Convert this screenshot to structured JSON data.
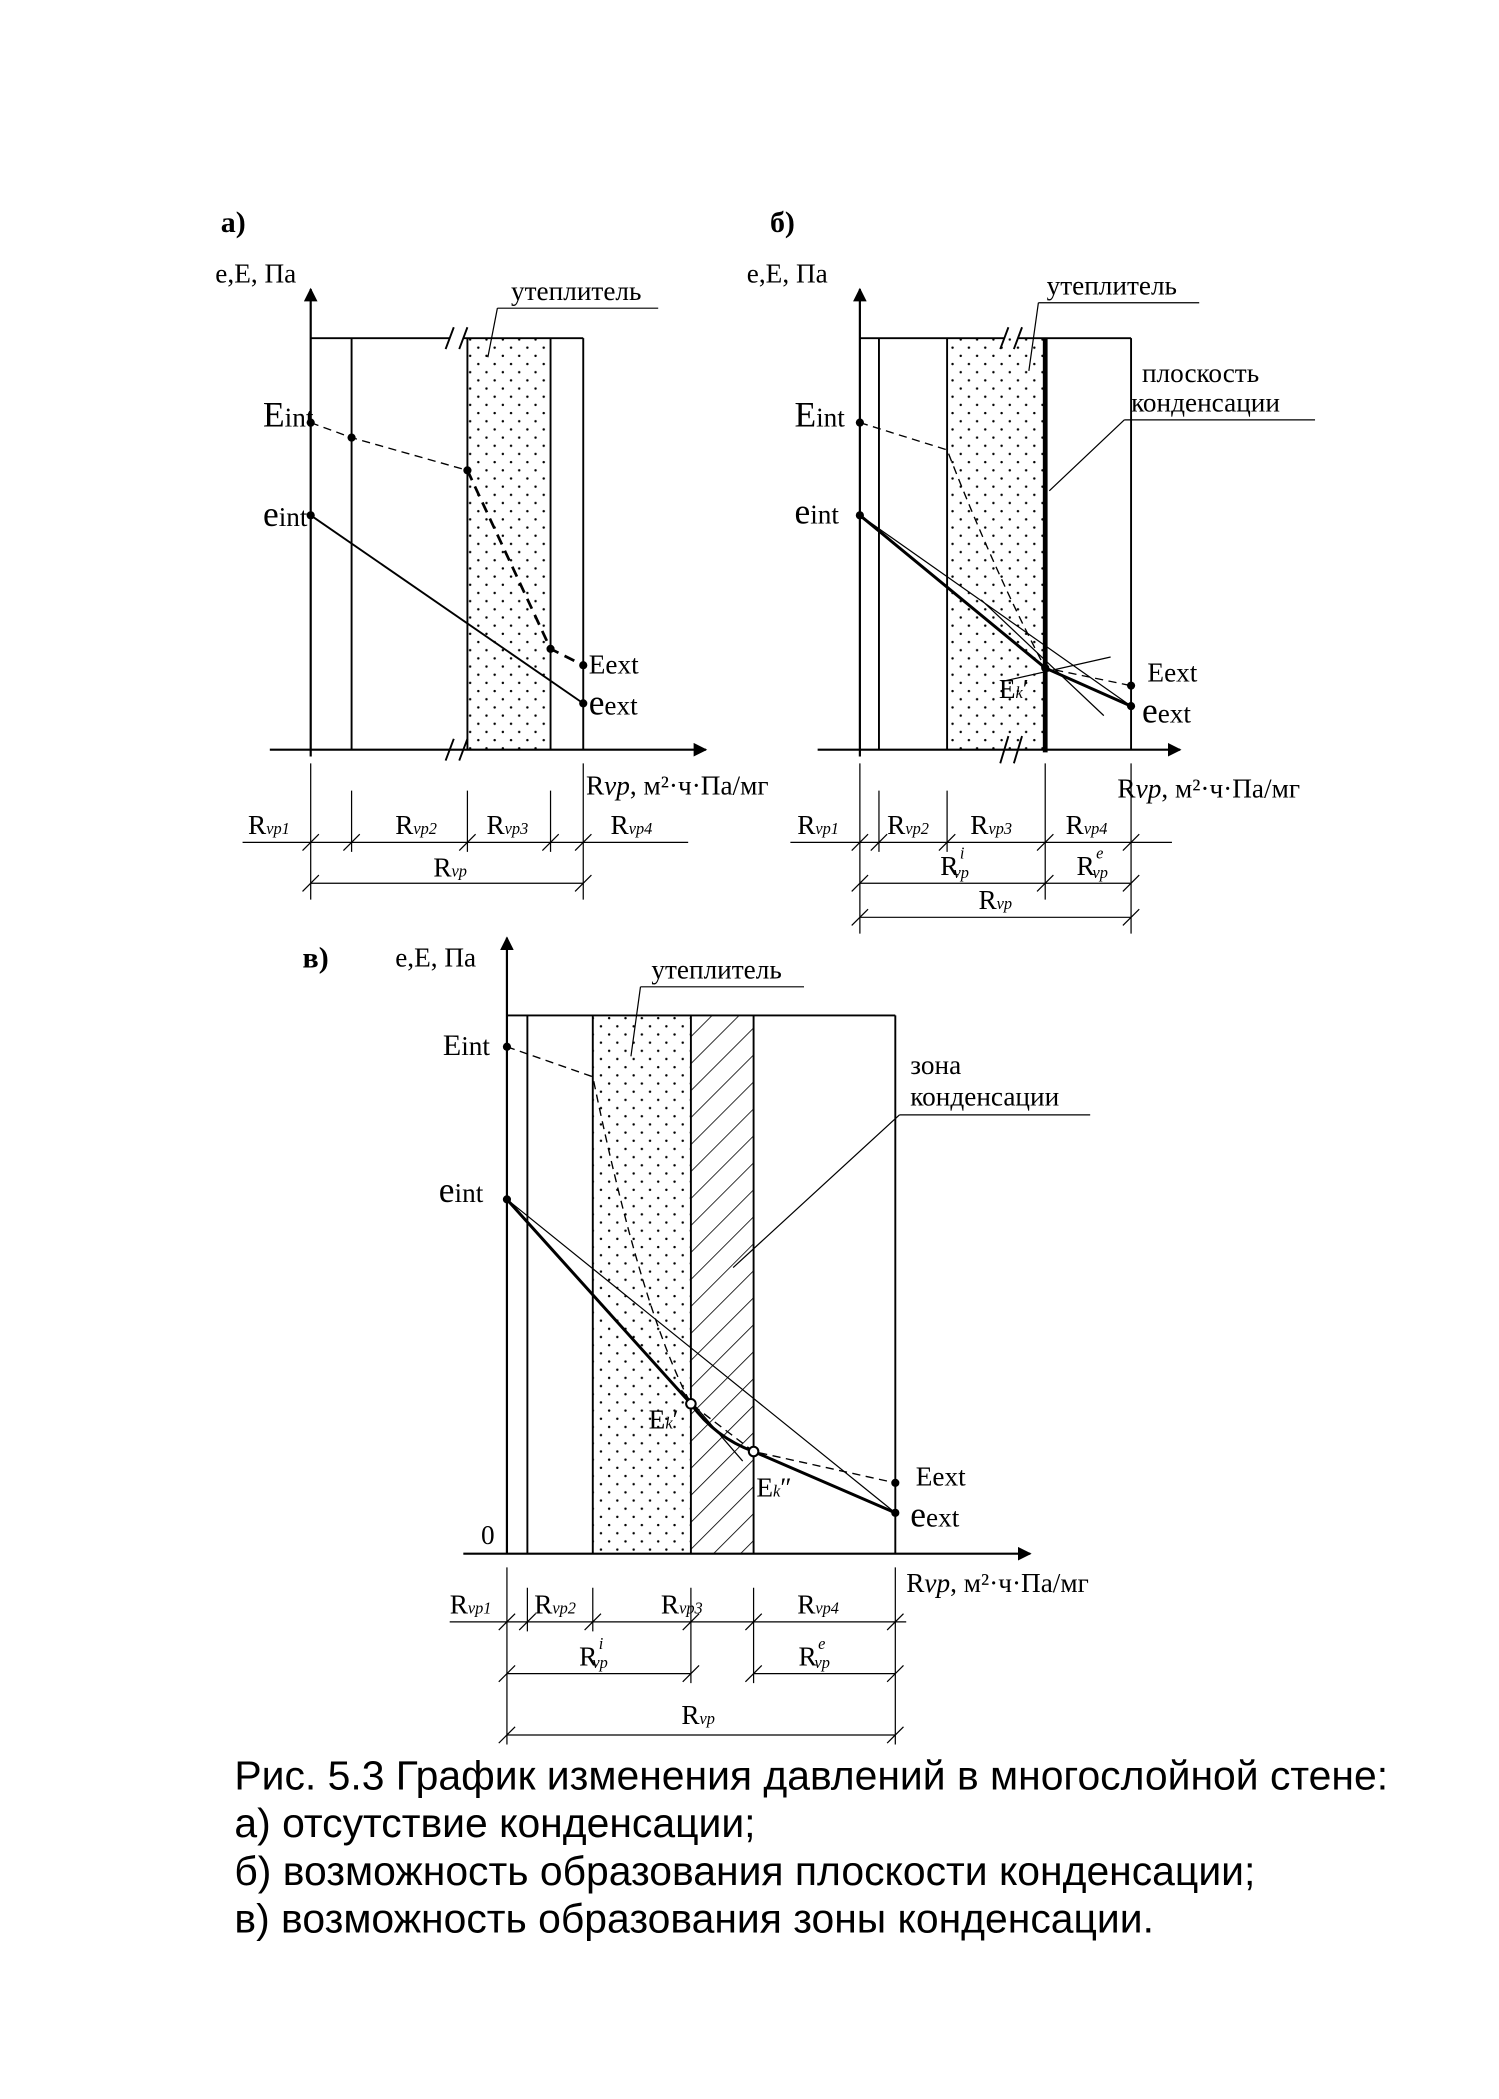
{
  "panels": {
    "a": {
      "tag": "а)",
      "axis_y": "e,E, Па",
      "insulation": "утеплитель",
      "E_int": "int",
      "e_int": "int",
      "E_ext": "ext",
      "e_ext": "ext",
      "axis_x_R": "R",
      "axis_x_vp": "vp",
      "axis_x_unit": ", м²·ч·Па/мг",
      "dims": [
        {
          "m": "R",
          "s": "vp1"
        },
        {
          "m": "R",
          "s": "vp2"
        },
        {
          "m": "R",
          "s": "vp3"
        },
        {
          "m": "R",
          "s": "vp4"
        }
      ],
      "total": {
        "m": "R",
        "s": "vp"
      }
    },
    "b": {
      "tag": "б)",
      "axis_y": "e,E, Па",
      "insulation": "утеплитель",
      "plane_1": "плоскость",
      "plane_2": "конденсации",
      "E_int": "int",
      "e_int": "int",
      "E_ext": "ext",
      "e_ext": "ext",
      "Ek": "E",
      "Ek_sub": "k",
      "Ek_mark": "′",
      "axis_x_R": "R",
      "axis_x_vp": "vp",
      "axis_x_unit": ", м²·ч·Па/мг",
      "dims": [
        {
          "m": "R",
          "s": "vp1"
        },
        {
          "m": "R",
          "s": "vp2"
        },
        {
          "m": "R",
          "s": "vp3"
        },
        {
          "m": "R",
          "s": "vp4"
        }
      ],
      "inner": {
        "m": "R",
        "s": "vp",
        "sup": "i"
      },
      "outer": {
        "m": "R",
        "s": "vp",
        "sup": "e"
      },
      "total": {
        "m": "R",
        "s": "vp"
      }
    },
    "c": {
      "tag": "в)",
      "axis_y": "e,E, Па",
      "insulation": "утеплитель",
      "origin": "0",
      "zone_1": "зона",
      "zone_2": "конденсации",
      "E_int": "int",
      "e_int": "int",
      "E_ext": "ext",
      "e_ext": "ext",
      "Ek1": "E",
      "Ek1_sub": "k",
      "Ek1_mark": "′",
      "Ek2": "E",
      "Ek2_sub": "k",
      "Ek2_mark": "″",
      "axis_x_R": "R",
      "axis_x_vp": "vp",
      "axis_x_unit": ", м²·ч·Па/мг",
      "dims": [
        {
          "m": "R",
          "s": "vp1"
        },
        {
          "m": "R",
          "s": "vp2"
        },
        {
          "m": "R",
          "s": "vp3"
        },
        {
          "m": "R",
          "s": "vp4"
        }
      ],
      "inner": {
        "m": "R",
        "s": "vp",
        "sup": "i"
      },
      "outer": {
        "m": "R",
        "s": "vp",
        "sup": "e"
      },
      "total": {
        "m": "R",
        "s": "vp"
      }
    }
  },
  "caption": [
    "Рис. 5.3  График изменения давлений в многослойной стене:",
    "а) отсутствие конденсации;",
    "б) возможность образования плоскости конденсации;",
    "в) возможность образования зоны конденсации."
  ]
}
